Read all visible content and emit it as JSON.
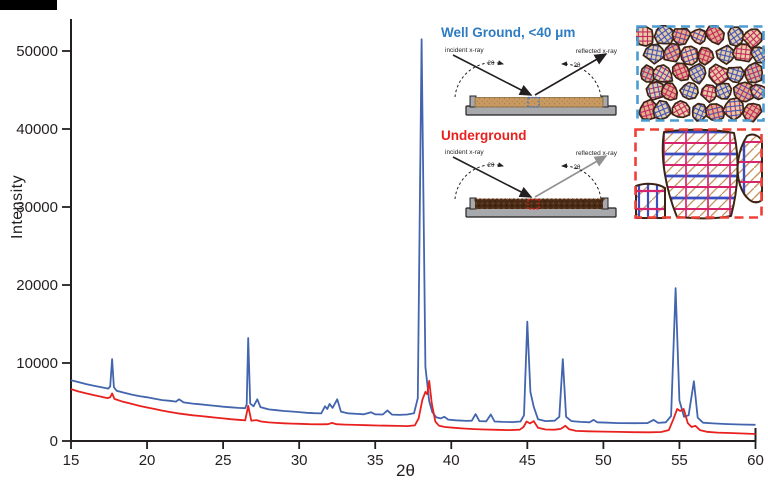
{
  "figure": {
    "background": "#ffffff",
    "black_bar_color": "#000000"
  },
  "chart_data": {
    "type": "line",
    "title": "",
    "xlabel": "2θ",
    "ylabel": "Intensity",
    "xlim": [
      15,
      60
    ],
    "ylim": [
      0,
      54000
    ],
    "x_ticks": [
      15,
      20,
      25,
      30,
      35,
      40,
      45,
      50,
      55,
      60
    ],
    "y_ticks": [
      0,
      10000,
      20000,
      30000,
      40000,
      50000
    ],
    "grid": false,
    "legend_position": "inset-titles-top-center",
    "axis_color": "#231f20",
    "series": [
      {
        "name": "Well Ground, <40 μm",
        "color": "#4365AE",
        "points": [
          [
            15,
            7800
          ],
          [
            15.5,
            7550
          ],
          [
            16,
            7300
          ],
          [
            16.5,
            7080
          ],
          [
            17,
            6900
          ],
          [
            17.45,
            6720
          ],
          [
            17.58,
            7000
          ],
          [
            17.7,
            10500
          ],
          [
            17.82,
            6900
          ],
          [
            18,
            6450
          ],
          [
            18.5,
            6180
          ],
          [
            19,
            5950
          ],
          [
            19.5,
            5750
          ],
          [
            20,
            5600
          ],
          [
            20.5,
            5420
          ],
          [
            21,
            5250
          ],
          [
            21.5,
            5150
          ],
          [
            21.9,
            5050
          ],
          [
            22.1,
            5350
          ],
          [
            22.4,
            4950
          ],
          [
            23,
            4800
          ],
          [
            23.5,
            4700
          ],
          [
            24,
            4600
          ],
          [
            24.5,
            4500
          ],
          [
            25,
            4400
          ],
          [
            25.5,
            4320
          ],
          [
            26,
            4250
          ],
          [
            26.45,
            4200
          ],
          [
            26.55,
            4700
          ],
          [
            26.65,
            13200
          ],
          [
            26.78,
            4800
          ],
          [
            27,
            4450
          ],
          [
            27.25,
            5350
          ],
          [
            27.45,
            4350
          ],
          [
            28,
            4050
          ],
          [
            28.5,
            3950
          ],
          [
            29,
            3850
          ],
          [
            29.5,
            3780
          ],
          [
            30,
            3700
          ],
          [
            30.5,
            3620
          ],
          [
            31,
            3560
          ],
          [
            31.45,
            3540
          ],
          [
            31.7,
            4450
          ],
          [
            31.85,
            4100
          ],
          [
            32,
            4750
          ],
          [
            32.2,
            4250
          ],
          [
            32.5,
            5350
          ],
          [
            32.75,
            3750
          ],
          [
            33.2,
            3550
          ],
          [
            33.8,
            3480
          ],
          [
            34.25,
            3420
          ],
          [
            34.5,
            3560
          ],
          [
            34.72,
            3680
          ],
          [
            35,
            3420
          ],
          [
            35.5,
            3400
          ],
          [
            35.8,
            3920
          ],
          [
            36.1,
            3380
          ],
          [
            36.6,
            3350
          ],
          [
            37.1,
            3400
          ],
          [
            37.55,
            3550
          ],
          [
            37.8,
            5500
          ],
          [
            38.05,
            51500
          ],
          [
            38.3,
            9500
          ],
          [
            38.55,
            5100
          ],
          [
            38.75,
            3700
          ],
          [
            39,
            3050
          ],
          [
            39.3,
            2900
          ],
          [
            39.55,
            3100
          ],
          [
            39.8,
            2750
          ],
          [
            40.3,
            2650
          ],
          [
            41,
            2580
          ],
          [
            41.35,
            2600
          ],
          [
            41.6,
            3450
          ],
          [
            41.85,
            2550
          ],
          [
            42.3,
            2520
          ],
          [
            42.6,
            3400
          ],
          [
            42.85,
            2500
          ],
          [
            43.4,
            2450
          ],
          [
            44,
            2420
          ],
          [
            44.55,
            2500
          ],
          [
            44.78,
            3300
          ],
          [
            45,
            15300
          ],
          [
            45.2,
            6300
          ],
          [
            45.42,
            4400
          ],
          [
            45.7,
            2800
          ],
          [
            46.2,
            2550
          ],
          [
            46.8,
            2600
          ],
          [
            47.1,
            3100
          ],
          [
            47.33,
            10500
          ],
          [
            47.55,
            3100
          ],
          [
            47.9,
            2550
          ],
          [
            48.5,
            2450
          ],
          [
            49.1,
            2400
          ],
          [
            49.35,
            2700
          ],
          [
            49.6,
            2400
          ],
          [
            50.3,
            2350
          ],
          [
            51,
            2300
          ],
          [
            52,
            2280
          ],
          [
            52.9,
            2300
          ],
          [
            53.3,
            2700
          ],
          [
            53.6,
            2320
          ],
          [
            54.1,
            2400
          ],
          [
            54.45,
            3200
          ],
          [
            54.75,
            19600
          ],
          [
            55,
            5200
          ],
          [
            55.3,
            3100
          ],
          [
            55.6,
            3300
          ],
          [
            55.95,
            7650
          ],
          [
            56.2,
            3000
          ],
          [
            56.55,
            2350
          ],
          [
            57.2,
            2250
          ],
          [
            58,
            2180
          ],
          [
            59,
            2120
          ],
          [
            60,
            2080
          ]
        ]
      },
      {
        "name": "Underground",
        "color": "#E8211F",
        "points": [
          [
            15,
            6650
          ],
          [
            15.5,
            6350
          ],
          [
            16,
            6100
          ],
          [
            16.5,
            5880
          ],
          [
            17,
            5680
          ],
          [
            17.4,
            5500
          ],
          [
            17.58,
            5600
          ],
          [
            17.7,
            6100
          ],
          [
            17.85,
            5400
          ],
          [
            18.3,
            5100
          ],
          [
            19,
            4750
          ],
          [
            19.5,
            4500
          ],
          [
            20,
            4300
          ],
          [
            20.5,
            4100
          ],
          [
            21,
            3900
          ],
          [
            21.5,
            3720
          ],
          [
            22,
            3550
          ],
          [
            22.5,
            3420
          ],
          [
            23,
            3300
          ],
          [
            23.5,
            3200
          ],
          [
            24,
            3100
          ],
          [
            24.5,
            3000
          ],
          [
            25,
            2900
          ],
          [
            25.5,
            2800
          ],
          [
            26,
            2720
          ],
          [
            26.45,
            2650
          ],
          [
            26.65,
            4500
          ],
          [
            26.85,
            2600
          ],
          [
            27.2,
            2680
          ],
          [
            27.5,
            2500
          ],
          [
            28,
            2380
          ],
          [
            28.5,
            2320
          ],
          [
            29,
            2270
          ],
          [
            29.5,
            2230
          ],
          [
            30,
            2200
          ],
          [
            30.7,
            2160
          ],
          [
            31.4,
            2140
          ],
          [
            31.9,
            2160
          ],
          [
            32.15,
            2320
          ],
          [
            32.45,
            2150
          ],
          [
            33,
            2100
          ],
          [
            33.7,
            2060
          ],
          [
            34.4,
            2020
          ],
          [
            35.1,
            1990
          ],
          [
            35.8,
            1960
          ],
          [
            36.5,
            1930
          ],
          [
            37.1,
            1910
          ],
          [
            37.6,
            2000
          ],
          [
            37.85,
            2900
          ],
          [
            38.1,
            5300
          ],
          [
            38.3,
            6300
          ],
          [
            38.42,
            6000
          ],
          [
            38.55,
            7700
          ],
          [
            38.72,
            4800
          ],
          [
            38.95,
            2500
          ],
          [
            39.2,
            1950
          ],
          [
            39.6,
            1800
          ],
          [
            40.1,
            1700
          ],
          [
            40.8,
            1600
          ],
          [
            41.5,
            1530
          ],
          [
            42.2,
            1480
          ],
          [
            43,
            1430
          ],
          [
            43.8,
            1400
          ],
          [
            44.5,
            1450
          ],
          [
            44.75,
            1800
          ],
          [
            44.95,
            2500
          ],
          [
            45.18,
            2250
          ],
          [
            45.42,
            2550
          ],
          [
            45.7,
            1700
          ],
          [
            46.2,
            1480
          ],
          [
            46.8,
            1450
          ],
          [
            47.2,
            1550
          ],
          [
            47.5,
            1950
          ],
          [
            47.75,
            1500
          ],
          [
            48.2,
            1300
          ],
          [
            49,
            1250
          ],
          [
            50,
            1200
          ],
          [
            51,
            1170
          ],
          [
            52,
            1130
          ],
          [
            53,
            1120
          ],
          [
            53.8,
            1150
          ],
          [
            54.3,
            1400
          ],
          [
            54.6,
            2800
          ],
          [
            54.85,
            4100
          ],
          [
            55.05,
            3850
          ],
          [
            55.28,
            4100
          ],
          [
            55.55,
            2300
          ],
          [
            55.8,
            1800
          ],
          [
            56.05,
            1950
          ],
          [
            56.35,
            1400
          ],
          [
            56.8,
            1180
          ],
          [
            57.5,
            1080
          ],
          [
            58.3,
            1020
          ],
          [
            59.2,
            960
          ],
          [
            60,
            900
          ]
        ]
      }
    ]
  },
  "insets": {
    "well_ground": {
      "title": "Well Ground, <40 μm",
      "title_color": "#2E7CC1",
      "incident_label": "incident x-ray",
      "reflected_label": "reflected x-ray",
      "angle_label": "2θ",
      "sample_color": "#C89A62",
      "speckle_color": "#9A7342",
      "reflected_arrow_color": "#231f20",
      "focus_color": "#3E6FC4",
      "tray_color": "#A7A9AC"
    },
    "underground": {
      "title": "Underground",
      "title_color": "#E8211F",
      "incident_label": "incident x-ray",
      "reflected_label": "reflected x-ray",
      "angle_label": "2θ",
      "sample_color": "#4A2B15",
      "speckle_color": "#7A4A26",
      "reflected_arrow_color": "#919191",
      "focus_color": "#E8211F",
      "tray_color": "#A7A9AC"
    }
  },
  "micrographs": {
    "fine_grains": {
      "border_color": "#4B9CD3",
      "outline_color": "#3C2415",
      "colors": {
        "magenta": "#C2255C",
        "blue": "#3F51B5",
        "tan": "#E2B08C",
        "cream": "#E9CFA8"
      }
    },
    "coarse_grains": {
      "border_color": "#EE4036",
      "outline_color": "#3C2415",
      "colors": {
        "blue": "#3B4CC0",
        "magenta": "#D6246E",
        "tan": "#C8945F"
      }
    }
  }
}
